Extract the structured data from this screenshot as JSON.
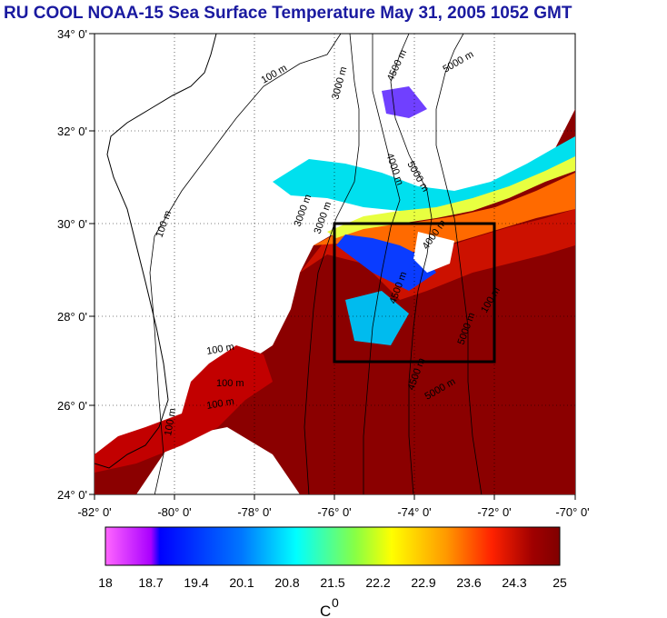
{
  "title": "RU COOL  NOAA-15 Sea Surface Temperature May 31, 2005 1052 GMT",
  "map": {
    "lat_labels": [
      "34° 0'",
      "32° 0'",
      "30° 0'",
      "28° 0'",
      "26° 0'",
      "24° 0'"
    ],
    "lon_labels": [
      "-82° 0'",
      "-80° 0'",
      "-78° 0'",
      "-76° 0'",
      "-74° 0'",
      "-72° 0'",
      "-70° 0'"
    ],
    "lat_range": [
      24,
      34
    ],
    "lon_range": [
      -82,
      -70
    ],
    "study_box": {
      "lon": [
        -76,
        -72
      ],
      "lat": [
        27,
        30
      ]
    },
    "contour_labels": [
      "100 m",
      "100 m",
      "3000 m",
      "4500 m",
      "5000 m",
      "4000 m",
      "5000 m",
      "3000 m",
      "3000 m",
      "4000 m",
      "4500 m",
      "5000 m",
      "100 m",
      "100 m",
      "100 m",
      "4500 m",
      "5000 m",
      "100 m",
      "100 m"
    ]
  },
  "colorbar": {
    "ticks": [
      "18",
      "18.7",
      "19.4",
      "20.1",
      "20.8",
      "21.5",
      "22.2",
      "22.9",
      "23.6",
      "24.3",
      "25"
    ],
    "unit": "C",
    "unit_superscript": "0",
    "colors": [
      "#ff66ff",
      "#cc33ff",
      "#0000ff",
      "#0055ff",
      "#00bbff",
      "#00ffee",
      "#66ff66",
      "#ffff00",
      "#ff9900",
      "#ff2200",
      "#880000"
    ]
  }
}
